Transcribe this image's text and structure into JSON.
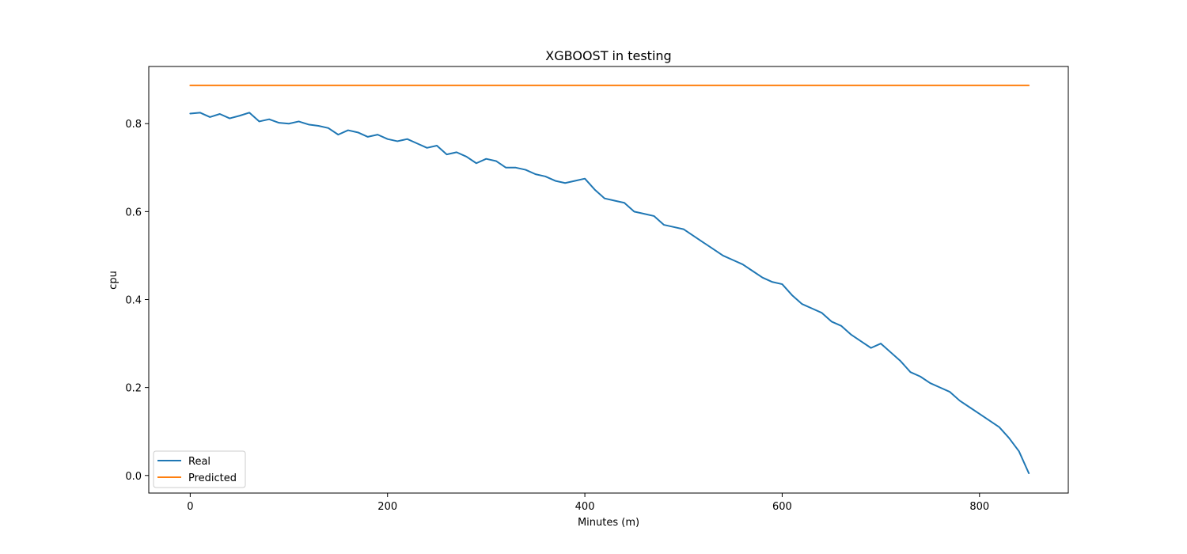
{
  "chart_data": {
    "type": "line",
    "title": "XGBOOST in testing",
    "xlabel": "Minutes (m)",
    "ylabel": "cpu",
    "xlim": [
      -42,
      890
    ],
    "ylim": [
      -0.04,
      0.93
    ],
    "xticks": [
      0,
      200,
      400,
      600,
      800
    ],
    "yticks": [
      0.0,
      0.2,
      0.4,
      0.6,
      0.8
    ],
    "ytick_labels": [
      "0.0",
      "0.2",
      "0.4",
      "0.6",
      "0.8"
    ],
    "grid": false,
    "legend_position": "lower-left",
    "series": [
      {
        "name": "Real",
        "color": "#1f77b4",
        "x": [
          0,
          10,
          20,
          30,
          40,
          50,
          60,
          70,
          80,
          90,
          100,
          110,
          120,
          130,
          140,
          150,
          160,
          170,
          180,
          190,
          200,
          210,
          220,
          230,
          240,
          250,
          260,
          270,
          280,
          290,
          300,
          310,
          320,
          330,
          340,
          350,
          360,
          370,
          380,
          390,
          400,
          410,
          420,
          430,
          440,
          450,
          460,
          470,
          480,
          490,
          500,
          510,
          520,
          530,
          540,
          550,
          560,
          570,
          580,
          590,
          600,
          610,
          620,
          630,
          640,
          650,
          660,
          670,
          680,
          690,
          700,
          710,
          720,
          730,
          740,
          750,
          760,
          770,
          780,
          790,
          800,
          810,
          820,
          830,
          840,
          850
        ],
        "y": [
          0.823,
          0.825,
          0.815,
          0.822,
          0.812,
          0.818,
          0.825,
          0.805,
          0.81,
          0.802,
          0.8,
          0.805,
          0.798,
          0.795,
          0.79,
          0.775,
          0.785,
          0.78,
          0.77,
          0.775,
          0.765,
          0.76,
          0.765,
          0.755,
          0.745,
          0.75,
          0.73,
          0.735,
          0.725,
          0.71,
          0.72,
          0.715,
          0.7,
          0.7,
          0.695,
          0.685,
          0.68,
          0.67,
          0.665,
          0.67,
          0.675,
          0.65,
          0.63,
          0.625,
          0.62,
          0.6,
          0.595,
          0.59,
          0.57,
          0.565,
          0.56,
          0.545,
          0.53,
          0.515,
          0.5,
          0.49,
          0.48,
          0.465,
          0.45,
          0.44,
          0.435,
          0.41,
          0.39,
          0.38,
          0.37,
          0.35,
          0.34,
          0.32,
          0.305,
          0.29,
          0.3,
          0.28,
          0.26,
          0.235,
          0.225,
          0.21,
          0.2,
          0.19,
          0.17,
          0.155,
          0.14,
          0.125,
          0.11,
          0.085,
          0.055,
          0.005
        ]
      },
      {
        "name": "Predicted",
        "color": "#ff7f0e",
        "x": [
          0,
          850
        ],
        "y": [
          0.887,
          0.887
        ]
      }
    ]
  }
}
